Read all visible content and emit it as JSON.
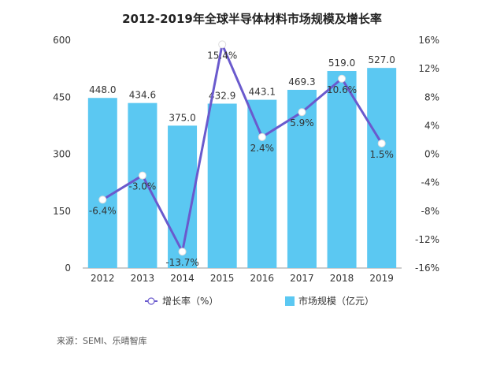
{
  "chart_data": {
    "type": "bar",
    "title": "2012-2019年全球半导体材料市场规模及增长率",
    "categories": [
      "2012",
      "2013",
      "2014",
      "2015",
      "2016",
      "2017",
      "2018",
      "2019"
    ],
    "series": [
      {
        "name": "市场规模（亿元）",
        "type": "bar",
        "axis": "left",
        "color": "#5BC8F2",
        "values": [
          448.0,
          434.6,
          375.0,
          432.9,
          443.1,
          469.3,
          519.0,
          527.0
        ],
        "labels": [
          "448.0",
          "434.6",
          "375.0",
          "432.9",
          "443.1",
          "469.3",
          "519.0",
          "527.0"
        ]
      },
      {
        "name": "增长率（%）",
        "type": "line",
        "axis": "right",
        "color": "#6A5ACD",
        "values": [
          -6.4,
          -3.0,
          -13.7,
          15.4,
          2.4,
          5.9,
          10.6,
          1.5
        ],
        "labels": [
          "-6.4%",
          "-3.0%",
          "-13.7%",
          "15.4%",
          "2.4%",
          "5.9%",
          "10.6%",
          "1.5%"
        ]
      }
    ],
    "y_left": {
      "min": 0,
      "max": 600,
      "ticks": [
        "0",
        "150",
        "300",
        "450",
        "600"
      ]
    },
    "y_right": {
      "min": -16,
      "max": 16,
      "ticks": [
        "-16%",
        "-12%",
        "-8%",
        "-4%",
        "0%",
        "4%",
        "8%",
        "12%",
        "16%"
      ]
    },
    "grid": false,
    "legend_position": "bottom"
  },
  "source_note": "来源：SEMI、乐晴智库"
}
